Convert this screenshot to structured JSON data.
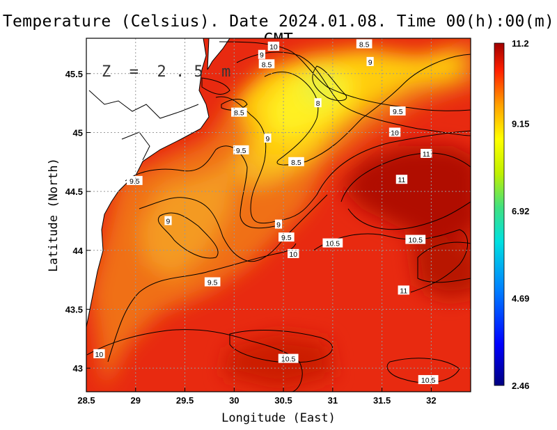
{
  "chart_data": {
    "type": "heatmap",
    "title": "Temperature (Celsius). Date 2024.01.08. Time 00(h):00(m) GMT",
    "xlabel": "Longitude (East)",
    "ylabel": "Latitude (North)",
    "xlim": [
      28.5,
      32.4
    ],
    "ylim": [
      42.8,
      45.8
    ],
    "x_ticks": [
      28.5,
      29,
      29.5,
      30,
      30.5,
      31,
      31.5,
      32
    ],
    "x_tick_labels": [
      "28.5",
      "29",
      "29.5",
      "30",
      "30.5",
      "31",
      "31.5",
      "32"
    ],
    "y_ticks": [
      43,
      43.5,
      44,
      44.5,
      45,
      45.5
    ],
    "y_tick_labels": [
      "43",
      "43.5",
      "44",
      "44.5",
      "45",
      "45.5"
    ],
    "grid": true,
    "annotation": "Z = 2.5 m",
    "colorbar": {
      "min": 2.46,
      "max": 11.2,
      "ticks": [
        11.2,
        9.15,
        6.92,
        4.69,
        2.46
      ],
      "tick_labels": [
        "11.2",
        "9.15",
        "6.92",
        "4.69",
        "2.46"
      ]
    },
    "contour_labels": [
      {
        "lon": 30.4,
        "lat": 45.73,
        "value": "10"
      },
      {
        "lon": 31.32,
        "lat": 45.75,
        "value": "8.5"
      },
      {
        "lon": 30.28,
        "lat": 45.66,
        "value": "9"
      },
      {
        "lon": 30.33,
        "lat": 45.58,
        "value": "8.5"
      },
      {
        "lon": 31.38,
        "lat": 45.6,
        "value": "9"
      },
      {
        "lon": 30.85,
        "lat": 45.25,
        "value": "8"
      },
      {
        "lon": 30.05,
        "lat": 45.17,
        "value": "8.5"
      },
      {
        "lon": 31.66,
        "lat": 45.18,
        "value": "9.5"
      },
      {
        "lon": 31.63,
        "lat": 45.0,
        "value": "10"
      },
      {
        "lon": 30.34,
        "lat": 44.95,
        "value": "9"
      },
      {
        "lon": 30.07,
        "lat": 44.85,
        "value": "9.5"
      },
      {
        "lon": 31.95,
        "lat": 44.82,
        "value": "11"
      },
      {
        "lon": 30.63,
        "lat": 44.75,
        "value": "8.5"
      },
      {
        "lon": 28.99,
        "lat": 44.59,
        "value": "9.5"
      },
      {
        "lon": 31.7,
        "lat": 44.6,
        "value": "11"
      },
      {
        "lon": 29.33,
        "lat": 44.25,
        "value": "9"
      },
      {
        "lon": 30.45,
        "lat": 44.22,
        "value": "9"
      },
      {
        "lon": 30.53,
        "lat": 44.11,
        "value": "9.5"
      },
      {
        "lon": 31.0,
        "lat": 44.06,
        "value": "10.5"
      },
      {
        "lon": 31.84,
        "lat": 44.09,
        "value": "10.5"
      },
      {
        "lon": 30.6,
        "lat": 43.97,
        "value": "10"
      },
      {
        "lon": 29.78,
        "lat": 43.73,
        "value": "9.5"
      },
      {
        "lon": 31.72,
        "lat": 43.66,
        "value": "11"
      },
      {
        "lon": 28.63,
        "lat": 43.12,
        "value": "10"
      },
      {
        "lon": 30.55,
        "lat": 43.08,
        "value": "10.5"
      },
      {
        "lon": 31.97,
        "lat": 42.9,
        "value": "10.5"
      }
    ],
    "field_description_note": ""
  }
}
